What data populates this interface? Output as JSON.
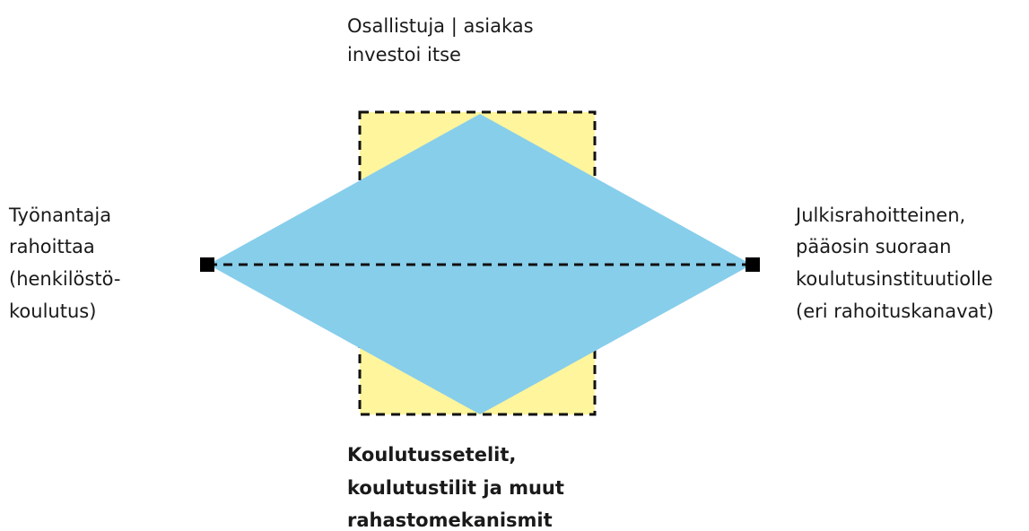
{
  "top": {
    "lines": [
      "Osallistuja | asiakas",
      "investoi itse"
    ]
  },
  "left": {
    "lines": [
      "Työnantaja",
      "rahoittaa",
      "(henkilöstö-",
      "koulutus)"
    ]
  },
  "right": {
    "lines": [
      "Julkisrahoitteinen,",
      "pääosin suoraan",
      "koulutusinstituutiolle",
      "(eri rahoituskanavat)"
    ]
  },
  "bottom": {
    "lines": [
      "Koulutussetelit,",
      "koulutustilit ja muut",
      "rahastomekanismit"
    ]
  }
}
